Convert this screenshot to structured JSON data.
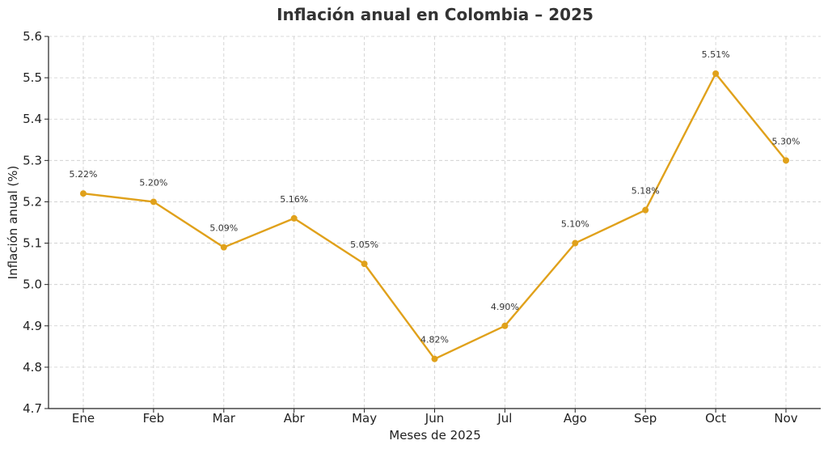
{
  "chart_data": {
    "type": "line",
    "title": "Inflación anual en Colombia – 2025",
    "xlabel": "Meses de 2025",
    "ylabel": "Inflación anual (%)",
    "categories": [
      "Ene",
      "Feb",
      "Mar",
      "Abr",
      "May",
      "Jun",
      "Jul",
      "Ago",
      "Sep",
      "Oct",
      "Nov"
    ],
    "values": [
      5.22,
      5.2,
      5.09,
      5.16,
      5.05,
      4.82,
      4.9,
      5.1,
      5.18,
      5.51,
      5.3
    ],
    "data_labels": [
      "5.22%",
      "5.20%",
      "5.09%",
      "5.16%",
      "5.05%",
      "4.82%",
      "4.90%",
      "5.10%",
      "5.18%",
      "5.51%",
      "5.30%"
    ],
    "ylim": [
      4.7,
      5.6
    ],
    "yticks": [
      4.7,
      4.8,
      4.9,
      5.0,
      5.1,
      5.2,
      5.3,
      5.4,
      5.5,
      5.6
    ],
    "ytick_labels": [
      "4.7",
      "4.8",
      "4.9",
      "5.0",
      "5.1",
      "5.2",
      "5.3",
      "5.4",
      "5.5",
      "5.6"
    ],
    "grid": true,
    "line_color": "#e0a11b",
    "marker": "circle"
  }
}
